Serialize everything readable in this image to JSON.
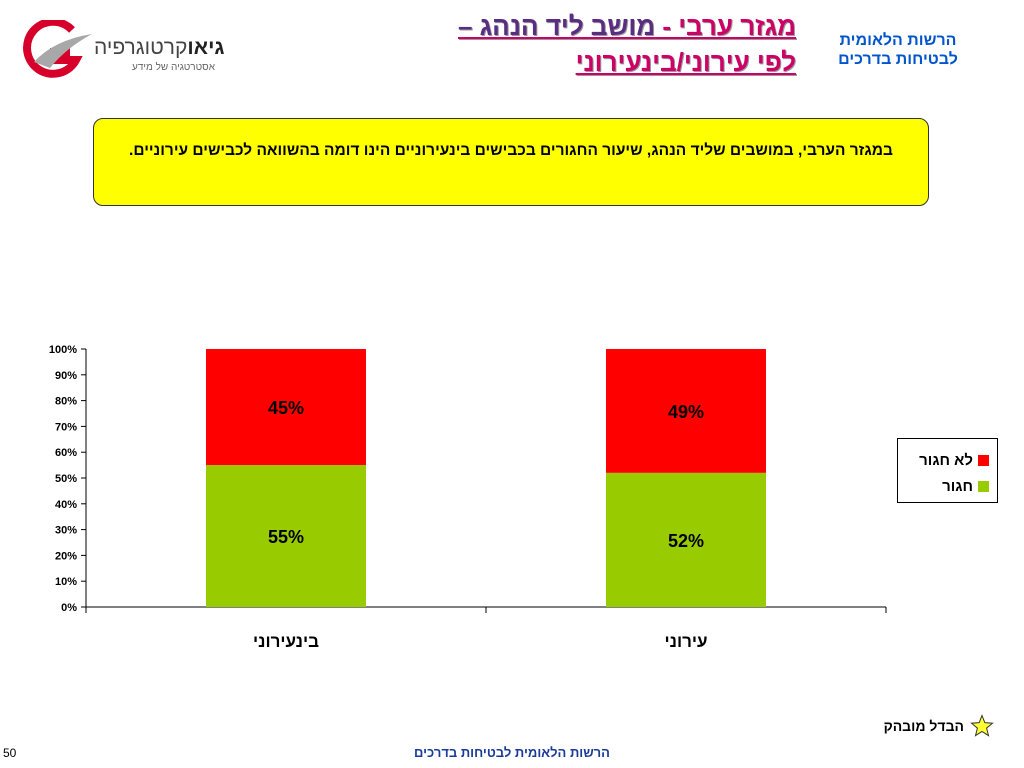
{
  "logo": {
    "brand_bold": "גיאו",
    "brand_rest": "קרטוגרפיה",
    "tagline": "אסטרטגיה של מידע"
  },
  "title": {
    "part1": "מגזר ערבי - ",
    "part2": "מושב ליד הנהג –",
    "line2": "לפי עירוני/בינעירוני"
  },
  "organization": {
    "line1": "הרשות הלאומית",
    "line2": "לבטיחות בדרכים"
  },
  "callout": {
    "text": "במגזר הערבי, במושבים שליד הנהג, שיעור החגורים בכבישים בינעירוניים הינו דומה בהשוואה לכבישים עירוניים."
  },
  "bottom_note": {
    "label": "הבדל מובהק",
    "icon": "star-icon"
  },
  "footer": {
    "text": "הרשות הלאומית לבטיחות בדרכים"
  },
  "page_number": "50",
  "colors": {
    "belted": "#99cc00",
    "not_belted": "#ff0000",
    "title_pink": "#cc0066",
    "title_purple": "#5a2d82",
    "org_blue": "#0055cc",
    "callout_bg": "#ffff00"
  },
  "chart_data": {
    "type": "bar",
    "stacked": true,
    "percent": true,
    "categories": [
      "בינעירוני",
      "עירוני"
    ],
    "series": [
      {
        "name": "חגור",
        "values": [
          55,
          52
        ],
        "labels": [
          "55%",
          "52%"
        ],
        "color": "#99cc00"
      },
      {
        "name": "לא חגור",
        "values": [
          45,
          49
        ],
        "labels": [
          "45%",
          "49%"
        ],
        "color": "#ff0000"
      }
    ],
    "ylim": [
      0,
      100
    ],
    "yticks": [
      "0%",
      "10%",
      "20%",
      "30%",
      "40%",
      "50%",
      "60%",
      "70%",
      "80%",
      "90%",
      "100%"
    ],
    "grid": false,
    "legend_position": "right"
  }
}
